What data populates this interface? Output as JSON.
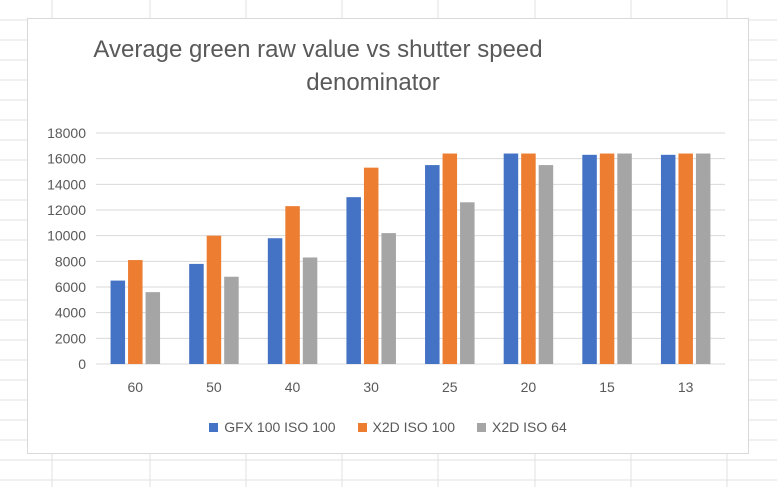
{
  "colors": {
    "series_0": "#4472C4",
    "series_1": "#ED7D31",
    "series_2": "#A5A5A5",
    "gridline": "#d9d9d9",
    "axis_text": "#595959"
  },
  "chart_data": {
    "type": "bar",
    "title_line1": "Average green raw value vs shutter speed",
    "title_line2": "denominator",
    "xlabel": "",
    "ylabel": "",
    "categories": [
      "60",
      "50",
      "40",
      "30",
      "25",
      "20",
      "15",
      "13"
    ],
    "series": [
      {
        "name": "GFX 100 ISO 100",
        "values": [
          6500,
          7800,
          9800,
          13000,
          15500,
          16400,
          16300,
          16300
        ]
      },
      {
        "name": "X2D ISO 100",
        "values": [
          8100,
          10000,
          12300,
          15300,
          16400,
          16400,
          16400,
          16400
        ]
      },
      {
        "name": "X2D ISO 64",
        "values": [
          5600,
          6800,
          8300,
          10200,
          12600,
          15500,
          16400,
          16400
        ]
      }
    ],
    "ylim": [
      0,
      18000
    ],
    "yticks": [
      0,
      2000,
      4000,
      6000,
      8000,
      10000,
      12000,
      14000,
      16000,
      18000
    ],
    "grid": true,
    "legend_position": "bottom"
  }
}
